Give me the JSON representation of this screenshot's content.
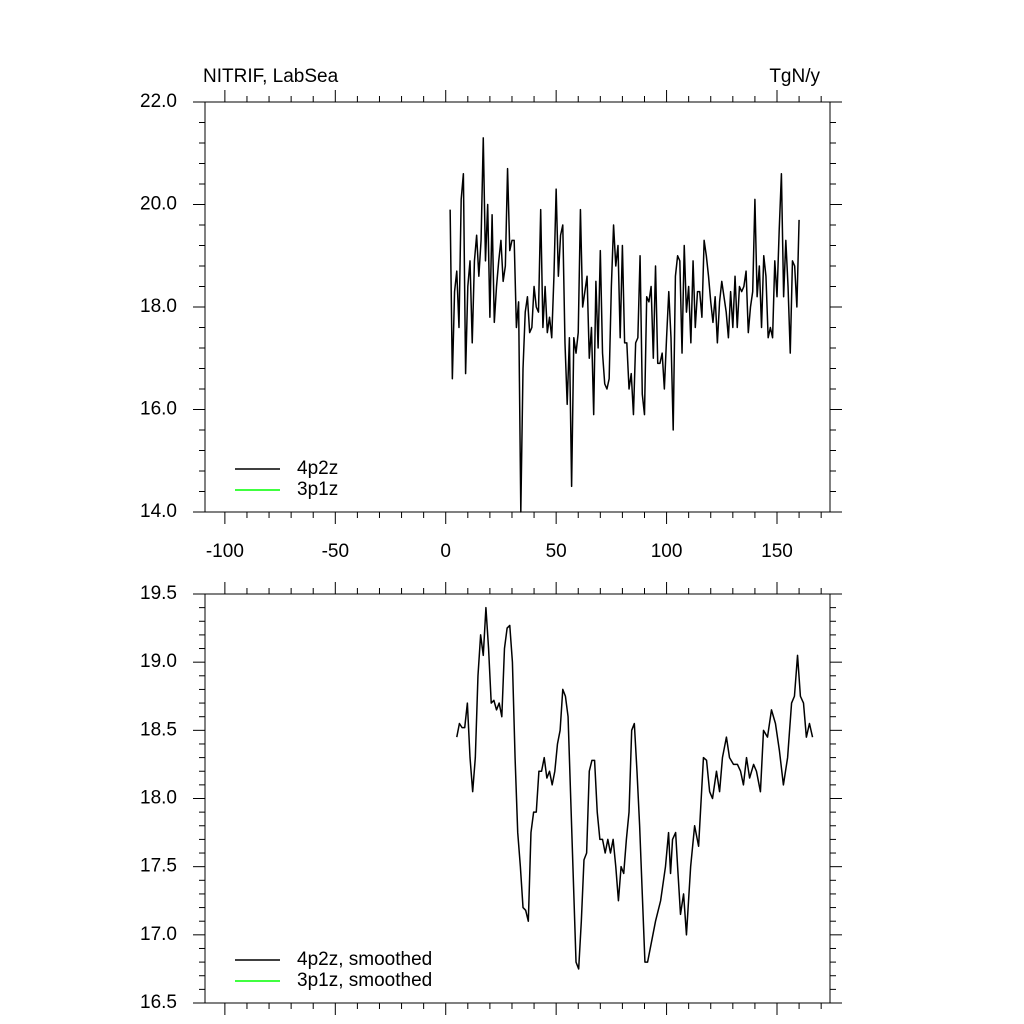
{
  "chart_data": [
    {
      "type": "line",
      "title": "NITRIF, LabSea",
      "units": "TgN/y",
      "xlim": [
        -109,
        174
      ],
      "xticks": [
        -100,
        -50,
        0,
        50,
        100,
        150
      ],
      "ylim": [
        14,
        22
      ],
      "yticks": [
        {
          "value": 14,
          "label": "14.0"
        },
        {
          "value": 16,
          "label": "16.0"
        },
        {
          "value": 18,
          "label": "18.0"
        },
        {
          "value": 20,
          "label": "20.0"
        },
        {
          "value": 22,
          "label": "22.0"
        }
      ],
      "legend": "lower left",
      "series": [
        {
          "name": "4p2z",
          "color": "#000000",
          "x": [
            2,
            3,
            4,
            5,
            6,
            7,
            8,
            9,
            10,
            11,
            12,
            13,
            14,
            15,
            16,
            17,
            18,
            19,
            20,
            21,
            22,
            23,
            24,
            25,
            26,
            27,
            28,
            29,
            30,
            31,
            32,
            33,
            34,
            35,
            36,
            37,
            38,
            39,
            40,
            41,
            42,
            43,
            44,
            45,
            46,
            47,
            48,
            49,
            50,
            51,
            52,
            53,
            54,
            55,
            56,
            57,
            58,
            59,
            60,
            61,
            62,
            63,
            64,
            65,
            66,
            67,
            68,
            69,
            70,
            71,
            72,
            73,
            74,
            75,
            76,
            77,
            78,
            79,
            80,
            81,
            82,
            83,
            84,
            85,
            86,
            87,
            88,
            89,
            90,
            91,
            92,
            93,
            94,
            95,
            96,
            97,
            98,
            99,
            100,
            101,
            102,
            103,
            104,
            105,
            106,
            107,
            108,
            109,
            110,
            111,
            112,
            113,
            114,
            115,
            116,
            117,
            118,
            119,
            120,
            121,
            122,
            123,
            124,
            125,
            126,
            127,
            128,
            129,
            130,
            131,
            132,
            133,
            134,
            135,
            136,
            137,
            138,
            139,
            140,
            141,
            142,
            143,
            144,
            145,
            146,
            147,
            148,
            149,
            150,
            151,
            152,
            153,
            154,
            155,
            156,
            157,
            158,
            159,
            160
          ],
          "values": [
            19.9,
            16.6,
            18.3,
            18.7,
            17.6,
            20.1,
            20.6,
            16.7,
            18.4,
            18.9,
            17.3,
            18.9,
            19.4,
            18.6,
            19.3,
            21.3,
            18.9,
            20.0,
            17.8,
            19.8,
            17.7,
            18.4,
            18.9,
            19.3,
            18.5,
            18.8,
            20.7,
            19.1,
            19.3,
            19.3,
            17.6,
            18.1,
            14.0,
            16.8,
            17.9,
            18.2,
            17.5,
            17.6,
            18.4,
            18.0,
            17.9,
            19.9,
            17.6,
            18.4,
            17.5,
            17.8,
            17.4,
            18.6,
            20.3,
            18.6,
            19.4,
            19.6,
            17.3,
            16.1,
            17.4,
            14.5,
            17.4,
            17.1,
            17.5,
            19.9,
            18.0,
            18.3,
            18.6,
            17.0,
            17.6,
            15.9,
            18.5,
            17.2,
            19.1,
            17.1,
            16.5,
            16.4,
            16.6,
            18.4,
            19.6,
            18.8,
            19.2,
            17.4,
            19.2,
            17.3,
            17.3,
            16.4,
            16.7,
            15.9,
            17.3,
            17.4,
            19.0,
            16.3,
            15.9,
            18.2,
            18.1,
            18.4,
            17.0,
            18.8,
            16.9,
            16.9,
            17.1,
            16.4,
            17.4,
            18.3,
            17.4,
            15.6,
            18.6,
            19.0,
            18.9,
            17.1,
            19.2,
            17.9,
            18.4,
            17.3,
            18.9,
            17.6,
            18.3,
            18.3,
            17.8,
            19.3,
            19.0,
            18.6,
            18.1,
            17.7,
            18.2,
            17.3,
            18.1,
            18.5,
            18.2,
            17.9,
            17.4,
            18.3,
            17.6,
            18.6,
            17.6,
            18.4,
            18.3,
            18.4,
            18.7,
            17.5,
            18.0,
            18.3,
            20.1,
            18.2,
            18.8,
            17.6,
            19.0,
            18.6,
            17.4,
            17.6,
            17.4,
            18.9,
            18.2,
            19.5,
            20.6,
            18.2,
            19.3,
            18.4,
            17.1,
            18.9,
            18.8,
            18.0,
            19.7
          ]
        },
        {
          "name": "3p1z",
          "color": "#00ff00"
        }
      ]
    },
    {
      "type": "line",
      "xlim": [
        -109,
        174
      ],
      "xticks": [
        -100,
        -50,
        0,
        50,
        100,
        150
      ],
      "ylim": [
        16.5,
        19.5
      ],
      "yticks": [
        16.5,
        {
          "value": 17,
          "label": "17.0"
        },
        17.5,
        {
          "value": 18,
          "label": "18.0"
        },
        18.5,
        {
          "value": 19,
          "label": "19.0"
        },
        19.5
      ],
      "legend": "lower left",
      "series": [
        {
          "name": "4p2z, smoothed",
          "color": "#000000",
          "x": [
            5,
            6.2,
            7.4,
            8.6,
            9.8,
            11,
            12.2,
            13.4,
            14.6,
            15.8,
            17,
            18.2,
            19.4,
            20.6,
            21.8,
            23,
            24.2,
            25.4,
            26.6,
            27.8,
            29,
            30.2,
            31.4,
            32.6,
            33.8,
            35,
            36.2,
            37.4,
            38.6,
            39.8,
            41,
            42.2,
            43.4,
            44.6,
            45.8,
            47,
            48.2,
            49.4,
            50.6,
            51.8,
            53,
            54.2,
            55.4,
            56.6,
            57.8,
            59,
            60.2,
            61.4,
            62.6,
            63.8,
            65,
            66.2,
            67.4,
            68.6,
            69.8,
            71,
            72.2,
            73.4,
            74.6,
            75.8,
            77,
            78.2,
            79.4,
            80.6,
            81.8,
            83,
            84.2,
            85.4,
            86.6,
            87.8,
            89,
            90.2,
            91.4,
            95.0,
            97.3,
            99.5,
            100.9,
            101.8,
            102.7,
            104.1,
            105.0,
            106.3,
            107.7,
            109.0,
            110.9,
            112.7,
            114.5,
            116.7,
            118.1,
            119.5,
            120.8,
            122.6,
            124.0,
            125.3,
            127.1,
            128.5,
            130.3,
            132.1,
            133.5,
            134.8,
            136.2,
            137.6,
            139.4,
            140.7,
            142.5,
            143.9,
            145.7,
            147.5,
            149.3,
            151.1,
            152.9,
            154.8,
            156.6,
            157.9,
            159.3,
            160.6,
            162.0,
            163.3,
            164.7,
            166.1
          ],
          "values": [
            18.45,
            18.55,
            18.52,
            18.52,
            18.7,
            18.3,
            18.05,
            18.3,
            18.9,
            19.2,
            19.05,
            19.4,
            19.1,
            18.7,
            18.72,
            18.65,
            18.7,
            18.6,
            19.1,
            19.25,
            19.27,
            19.0,
            18.3,
            17.75,
            17.5,
            17.2,
            17.18,
            17.1,
            17.75,
            17.9,
            17.9,
            18.2,
            18.2,
            18.3,
            18.15,
            18.2,
            18.1,
            18.2,
            18.4,
            18.5,
            18.8,
            18.75,
            18.6,
            18.0,
            17.4,
            16.8,
            16.75,
            17.1,
            17.55,
            17.6,
            18.2,
            18.28,
            18.28,
            17.9,
            17.7,
            17.7,
            17.6,
            17.7,
            17.6,
            17.7,
            17.5,
            17.25,
            17.5,
            17.45,
            17.7,
            17.9,
            18.5,
            18.55,
            18.2,
            17.8,
            17.3,
            16.8,
            16.8,
            17.1,
            17.25,
            17.5,
            17.75,
            17.45,
            17.7,
            17.75,
            17.5,
            17.15,
            17.3,
            17.0,
            17.5,
            17.8,
            17.65,
            18.3,
            18.28,
            18.05,
            18.0,
            18.2,
            18.05,
            18.3,
            18.45,
            18.3,
            18.25,
            18.25,
            18.2,
            18.1,
            18.3,
            18.15,
            18.25,
            18.2,
            18.05,
            18.5,
            18.45,
            18.65,
            18.55,
            18.35,
            18.1,
            18.3,
            18.7,
            18.75,
            19.05,
            18.75,
            18.7,
            18.45,
            18.55,
            18.45
          ]
        },
        {
          "name": "3p1z, smoothed",
          "color": "#00ff00"
        }
      ]
    }
  ]
}
